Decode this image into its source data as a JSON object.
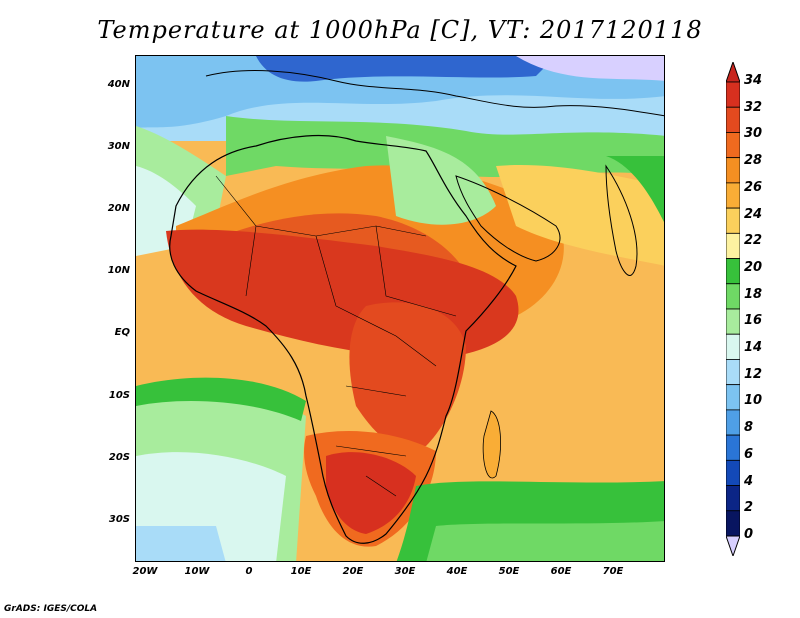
{
  "title": "Temperature at 1000hPa [C], VT: 2017120118",
  "credit": "GrADS: IGES/COLA",
  "axes": {
    "lat_ticks": [
      "40N",
      "30N",
      "20N",
      "10N",
      "EQ",
      "10S",
      "20S",
      "30S"
    ],
    "lon_ticks": [
      "20W",
      "10W",
      "0",
      "10E",
      "20E",
      "30E",
      "40E",
      "50E",
      "60E",
      "70E"
    ]
  },
  "colorbar": {
    "labels": [
      "34",
      "32",
      "30",
      "28",
      "26",
      "24",
      "22",
      "20",
      "18",
      "16",
      "14",
      "12",
      "10",
      "8",
      "6",
      "4",
      "2",
      "0"
    ],
    "colors": [
      "#d7301f",
      "#e34a1f",
      "#f06a1f",
      "#f58f22",
      "#f9ad36",
      "#fbd05c",
      "#fdf2a1",
      "#37c13b",
      "#6fd965",
      "#a8ec9d",
      "#d9f7ef",
      "#a9dcf8",
      "#7cc3f1",
      "#4f9fe6",
      "#2a75d6",
      "#1349b8",
      "#0b2586",
      "#081560"
    ],
    "top_cap_color": "#c8261e",
    "bottom_cap_color": "#d8d0ff"
  },
  "colors": {
    "ocean_north": "#a9dcf8",
    "ocean_south": "#c6f1d8",
    "indian_ocean": "#f9c765",
    "atlantic_trop": "#f7b851",
    "sahara_hot": "#e65a20",
    "central_hot": "#d9381e",
    "green_med": "#7bd56e",
    "cold_north": "#2f66cf"
  }
}
